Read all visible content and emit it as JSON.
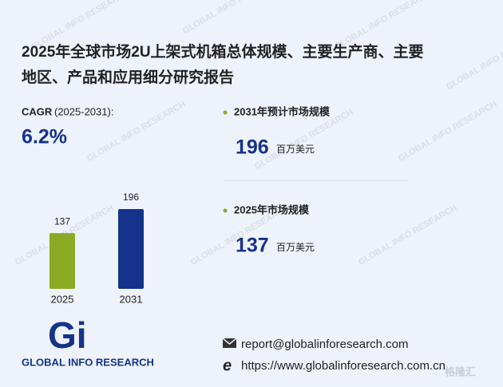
{
  "header": {
    "title_lines": [
      "2025年全球市场2U上架式机箱总体规模、主要生产商、主要",
      "地区、产品和应用细分研究报告"
    ]
  },
  "cagr": {
    "label": "CAGR",
    "period": "(2025-2031):",
    "value": "6.2%"
  },
  "markets": [
    {
      "title": "2031年预计市场规模",
      "value": 196,
      "unit": "百万美元"
    },
    {
      "title": "2025年市场规模",
      "value": 137,
      "unit": "百万美元"
    }
  ],
  "chart_data": {
    "type": "bar",
    "categories": [
      "2025",
      "2031"
    ],
    "values": [
      137,
      196
    ],
    "colors": [
      "#8aaa24",
      "#15338a"
    ]
  },
  "logo": {
    "mark": "Gi",
    "name": "GLOBAL INFO RESEARCH"
  },
  "contact": {
    "email": "report@globalinforesearch.com",
    "website": "https://www.globalinforesearch.com.cn"
  },
  "watermark": "GLOBAL INFO RESEARCH",
  "corner_watermark": "格隆汇"
}
